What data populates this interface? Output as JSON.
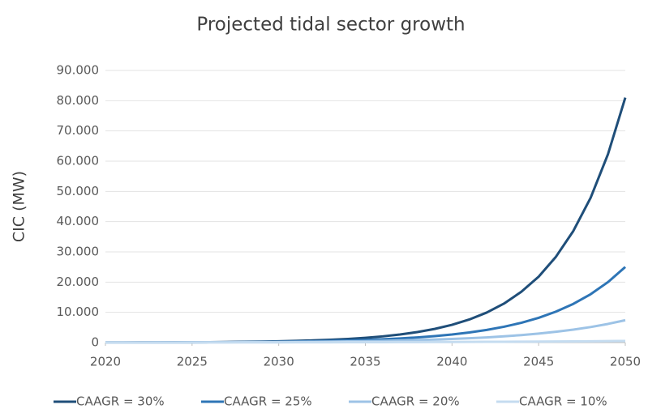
{
  "chart_data": {
    "type": "line",
    "title": "Projected tidal sector growth",
    "ylabel": "CIC (MW)",
    "x": [
      2020,
      2021,
      2022,
      2023,
      2024,
      2025,
      2026,
      2027,
      2028,
      2029,
      2030,
      2031,
      2032,
      2033,
      2034,
      2035,
      2036,
      2037,
      2038,
      2039,
      2040,
      2041,
      2042,
      2043,
      2044,
      2045,
      2046,
      2047,
      2048,
      2049,
      2050
    ],
    "series": [
      {
        "name": "CAAGR = 30%",
        "color": "#1f4e79",
        "values": [
          31,
          40,
          52,
          68,
          88,
          115,
          149,
          194,
          252,
          328,
          426,
          554,
          720,
          936,
          1220,
          1580,
          2060,
          2670,
          3480,
          4520,
          5880,
          7640,
          9930,
          12900,
          16800,
          21800,
          28400,
          36900,
          47900,
          62300,
          81000
        ]
      },
      {
        "name": "CAAGR = 25%",
        "color": "#2e75b6",
        "values": [
          31,
          39,
          48,
          60,
          76,
          94,
          118,
          148,
          184,
          231,
          288,
          360,
          450,
          563,
          704,
          880,
          1100,
          1370,
          1720,
          2150,
          2680,
          3360,
          4190,
          5240,
          6550,
          8190,
          10240,
          12800,
          16000,
          20000,
          25000
        ]
      },
      {
        "name": "CAAGR = 20%",
        "color": "#9dc3e6",
        "values": [
          31,
          37,
          45,
          54,
          65,
          78,
          93,
          112,
          134,
          161,
          193,
          232,
          278,
          334,
          400,
          480,
          576,
          692,
          830,
          996,
          1200,
          1430,
          1720,
          2070,
          2480,
          2970,
          3570,
          4280,
          5140,
          6170,
          7400
        ]
      },
      {
        "name": "CAAGR = 10%",
        "color": "#c5dcf0",
        "values": [
          31,
          34,
          38,
          41,
          45,
          50,
          55,
          60,
          66,
          73,
          80,
          88,
          97,
          107,
          118,
          130,
          143,
          157,
          173,
          190,
          209,
          230,
          253,
          278,
          306,
          336,
          370,
          407,
          447,
          492,
          541
        ]
      }
    ],
    "xlim": [
      2020,
      2050
    ],
    "xticks": [
      2020,
      2025,
      2030,
      2035,
      2040,
      2045,
      2050
    ],
    "ylim": [
      0,
      90000
    ],
    "yticks": [
      0,
      {
        "value": 10000,
        "label": "10.000"
      },
      {
        "value": 20000,
        "label": "20.000"
      },
      {
        "value": 30000,
        "label": "30.000"
      },
      {
        "value": 40000,
        "label": "40.000"
      },
      {
        "value": 50000,
        "label": "50.000"
      },
      {
        "value": 60000,
        "label": "60.000"
      },
      {
        "value": 70000,
        "label": "70.000"
      },
      {
        "value": 80000,
        "label": "80.000"
      },
      {
        "value": 90000,
        "label": "90.000"
      }
    ],
    "grid": true,
    "legend": "bottom"
  }
}
